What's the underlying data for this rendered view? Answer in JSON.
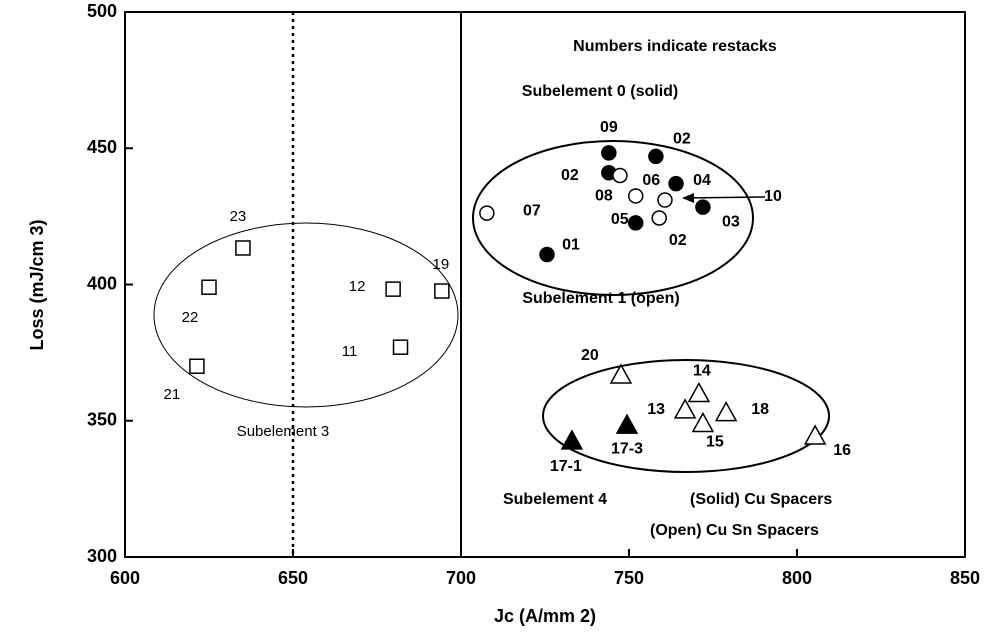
{
  "chart_data": {
    "type": "scatter",
    "xlabel": "Jc (A/mm 2)",
    "ylabel": "Loss (mJ/cm 3)",
    "xlim": [
      600,
      850
    ],
    "xticks": [
      600,
      650,
      700,
      750,
      800,
      850
    ],
    "ylim": [
      300,
      500
    ],
    "yticks": [
      300,
      350,
      400,
      450,
      500
    ],
    "reference_lines": [
      {
        "x": 650,
        "style": "dotted"
      },
      {
        "x": 700,
        "style": "solid"
      }
    ],
    "annotations": [
      "Numbers indicate restacks",
      "Subelement 4"
    ],
    "series": [
      {
        "name": "Subelement 3",
        "marker": "square",
        "filled": false,
        "color": "#000000",
        "x": [
          635.1,
          625,
          621.4,
          679.8,
          694.3,
          682
        ],
        "values": [
          413.4,
          399,
          370,
          398.3,
          397.6,
          377
        ],
        "labels": [
          "23",
          "22",
          "21",
          "12",
          "19",
          "11"
        ]
      },
      {
        "name": "Subelement 0 (solid)",
        "marker": "circle",
        "filled": true,
        "color": "#000000",
        "x": [
          744,
          758,
          744,
          764,
          772,
          752,
          725.6
        ],
        "values": [
          448.3,
          447,
          441,
          437,
          428.4,
          422.6,
          411
        ],
        "labels": [
          "09",
          "02",
          "02",
          "04",
          "03",
          "02",
          "01"
        ]
      },
      {
        "name": "Subelement 1 (open)",
        "marker": "circle",
        "filled": false,
        "color": "#000000",
        "x": [
          747.3,
          752,
          760.7,
          759,
          707.7
        ],
        "values": [
          440,
          432.5,
          431,
          424.4,
          426.2
        ],
        "labels": [
          "08",
          "05",
          "10",
          "06",
          "07"
        ]
      },
      {
        "name": "(Solid) Cu Spacers",
        "marker": "triangle",
        "filled": true,
        "color": "#000000",
        "x": [
          733,
          749.4
        ],
        "values": [
          342.6,
          348.4
        ],
        "labels": [
          "17-1",
          "17-3"
        ]
      },
      {
        "name": "(Open) Cu Sn Spacers",
        "marker": "triangle",
        "filled": false,
        "color": "#000000",
        "x": [
          747.6,
          770.8,
          766.7,
          772,
          778.9,
          805.4
        ],
        "values": [
          366.8,
          360,
          354,
          349,
          353,
          344.4
        ],
        "labels": [
          "20",
          "14",
          "13",
          "15",
          "18",
          "16"
        ]
      }
    ]
  }
}
